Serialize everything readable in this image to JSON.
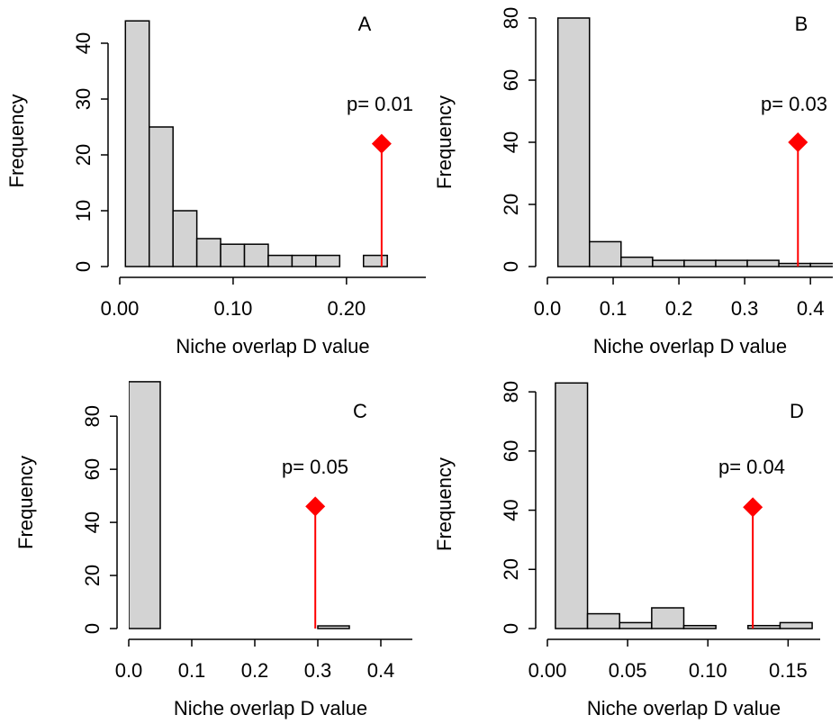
{
  "chart_data": [
    {
      "type": "histogram",
      "panel": "A",
      "annotation": "p= 0.01",
      "xlabel": "Niche overlap D value",
      "ylabel": "Frequency",
      "bins": [
        0.005,
        0.026,
        0.047,
        0.068,
        0.089,
        0.11,
        0.131,
        0.152,
        0.173,
        0.194,
        0.215,
        0.236
      ],
      "values": [
        44,
        25,
        10,
        5,
        4,
        4,
        2,
        2,
        2,
        0,
        2
      ],
      "color": "#d3d3d3",
      "xlim": [
        0,
        0.27
      ],
      "ylim": [
        0,
        45
      ],
      "xticks": [
        {
          "value": 0,
          "label": "0.00"
        },
        {
          "value": 0.1,
          "label": "0.10"
        },
        {
          "value": 0.2,
          "label": "0.20"
        }
      ],
      "yticks": [
        0,
        10,
        20,
        30,
        40
      ],
      "observed": {
        "x": 0.231,
        "y": 22,
        "color": "#ff0000"
      }
    },
    {
      "type": "histogram",
      "panel": "B",
      "annotation": "p= 0.03",
      "xlabel": "Niche overlap D value",
      "ylabel": "Frequency",
      "bins": [
        0.016,
        0.064,
        0.112,
        0.16,
        0.208,
        0.256,
        0.304,
        0.352,
        0.4,
        0.448
      ],
      "values": [
        80,
        8,
        3,
        2,
        2,
        2,
        2,
        1,
        1
      ],
      "color": "#d3d3d3",
      "xlim": [
        0,
        0.434
      ],
      "ylim": [
        0,
        80
      ],
      "xticks": [
        {
          "value": 0,
          "label": "0.0"
        },
        0.1,
        0.2,
        0.3,
        0.4
      ],
      "yticks": [
        0,
        20,
        40,
        60,
        80
      ],
      "observed": {
        "x": 0.381,
        "y": 40,
        "color": "#ff0000"
      }
    },
    {
      "type": "histogram",
      "panel": "C",
      "annotation": "p= 0.05",
      "xlabel": "Niche overlap D value",
      "ylabel": "Frequency",
      "bins": [
        0,
        0.05,
        0.1,
        0.15,
        0.2,
        0.25,
        0.3,
        0.35,
        0.4,
        0.45
      ],
      "values": [
        93,
        0,
        0,
        0,
        0,
        0,
        1,
        0,
        0
      ],
      "color": "#d3d3d3",
      "xlim": [
        0,
        0.45
      ],
      "ylim": [
        0,
        95
      ],
      "xticks": [
        {
          "value": 0,
          "label": "0.0"
        },
        0.1,
        0.2,
        0.3,
        0.4
      ],
      "yticks": [
        0,
        20,
        40,
        60,
        80
      ],
      "observed": {
        "x": 0.296,
        "y": 46,
        "color": "#ff0000"
      }
    },
    {
      "type": "histogram",
      "panel": "D",
      "annotation": "p= 0.04",
      "xlabel": "Niche overlap D value",
      "ylabel": "Frequency",
      "bins": [
        0.005,
        0.025,
        0.045,
        0.065,
        0.085,
        0.105,
        0.125,
        0.145,
        0.165
      ],
      "values": [
        83,
        5,
        2,
        7,
        1,
        0,
        1,
        2
      ],
      "color": "#d3d3d3",
      "xlim": [
        0,
        0.17
      ],
      "ylim": [
        0,
        84
      ],
      "xticks": [
        {
          "value": 0,
          "label": "0.00"
        },
        {
          "value": 0.05,
          "label": "0.05"
        },
        {
          "value": 0.1,
          "label": "0.10"
        },
        {
          "value": 0.15,
          "label": "0.15"
        }
      ],
      "yticks": [
        0,
        20,
        40,
        60,
        80
      ],
      "observed": {
        "x": 0.128,
        "y": 41,
        "color": "#ff0000"
      }
    }
  ]
}
